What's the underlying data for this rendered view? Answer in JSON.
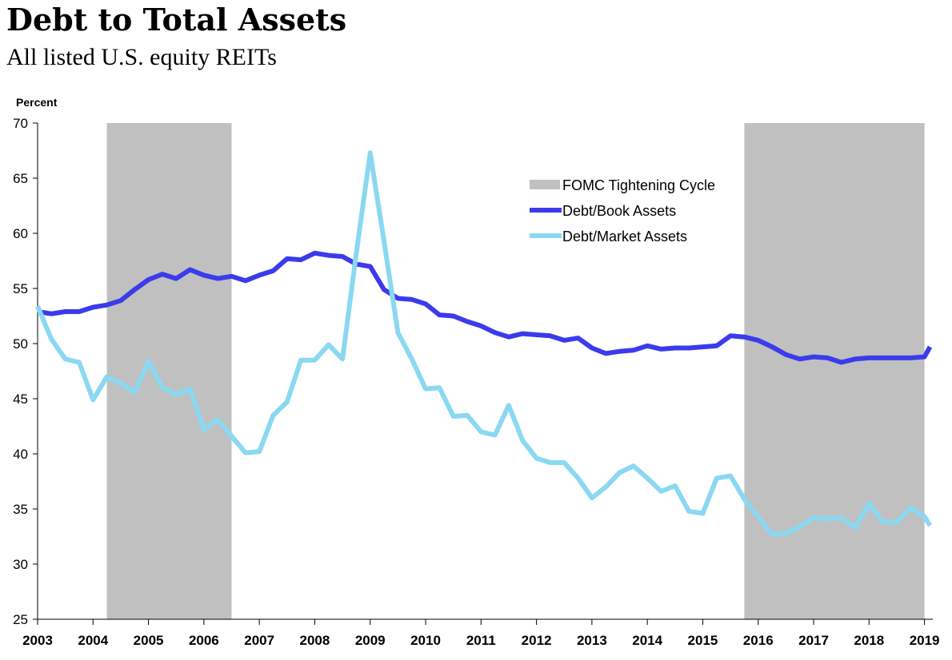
{
  "chart_data": {
    "type": "line",
    "title": "Debt to Total Assets",
    "subtitle": "All listed U.S. equity REITs",
    "ylabel": "Percent",
    "xlabel": "",
    "ylim": [
      25,
      70
    ],
    "yticks": [
      25,
      30,
      35,
      40,
      45,
      50,
      55,
      60,
      65,
      70
    ],
    "xlim": [
      2003.0,
      2019.15
    ],
    "xticks": [
      "2003",
      "2004",
      "2005",
      "2006",
      "2007",
      "2008",
      "2009",
      "2010",
      "2011",
      "2012",
      "2013",
      "2014",
      "2015",
      "2016",
      "2017",
      "2018",
      "2019"
    ],
    "grid": false,
    "legend_position": "upper-right-center",
    "shaded_periods": [
      {
        "name": "FOMC Tightening Cycle",
        "start": 2004.25,
        "end": 2006.5,
        "color": "#c0c0c0"
      },
      {
        "name": "FOMC Tightening Cycle",
        "start": 2015.75,
        "end": 2019.0,
        "color": "#c0c0c0"
      }
    ],
    "legend": [
      {
        "label": "FOMC Tightening Cycle",
        "kind": "band",
        "color": "#c0c0c0"
      },
      {
        "label": "Debt/Book Assets",
        "kind": "line",
        "color": "#3b3bec"
      },
      {
        "label": "Debt/Market Assets",
        "kind": "line",
        "color": "#8ad8f2"
      }
    ],
    "series": [
      {
        "name": "Debt/Book Assets",
        "color": "#3b3bec",
        "x": [
          2003.0,
          2003.25,
          2003.5,
          2003.75,
          2004.0,
          2004.25,
          2004.5,
          2004.75,
          2005.0,
          2005.25,
          2005.5,
          2005.75,
          2006.0,
          2006.25,
          2006.5,
          2006.75,
          2007.0,
          2007.25,
          2007.5,
          2007.75,
          2008.0,
          2008.25,
          2008.5,
          2008.75,
          2009.0,
          2009.25,
          2009.5,
          2009.75,
          2010.0,
          2010.25,
          2010.5,
          2010.75,
          2011.0,
          2011.25,
          2011.5,
          2011.75,
          2012.0,
          2012.25,
          2012.5,
          2012.75,
          2013.0,
          2013.25,
          2013.5,
          2013.75,
          2014.0,
          2014.25,
          2014.5,
          2014.75,
          2015.0,
          2015.25,
          2015.5,
          2015.75,
          2016.0,
          2016.25,
          2016.5,
          2016.75,
          2017.0,
          2017.25,
          2017.5,
          2017.75,
          2018.0,
          2018.25,
          2018.5,
          2018.75,
          2019.0,
          2019.1
        ],
        "values": [
          52.9,
          52.7,
          52.9,
          52.9,
          53.3,
          53.5,
          53.9,
          54.9,
          55.8,
          56.3,
          55.9,
          56.7,
          56.2,
          55.9,
          56.1,
          55.7,
          56.2,
          56.6,
          57.7,
          57.6,
          58.2,
          58.0,
          57.9,
          57.2,
          57.0,
          54.9,
          54.1,
          54.0,
          53.6,
          52.6,
          52.5,
          52.0,
          51.6,
          51.0,
          50.6,
          50.9,
          50.8,
          50.7,
          50.3,
          50.5,
          49.6,
          49.1,
          49.3,
          49.4,
          49.8,
          49.5,
          49.6,
          49.6,
          49.7,
          49.8,
          50.7,
          50.6,
          50.3,
          49.7,
          49.0,
          48.6,
          48.8,
          48.7,
          48.3,
          48.6,
          48.7,
          48.7,
          48.7,
          48.7,
          48.8,
          49.7
        ]
      },
      {
        "name": "Debt/Market Assets",
        "color": "#8ad8f2",
        "x": [
          2003.0,
          2003.25,
          2003.5,
          2003.75,
          2004.0,
          2004.25,
          2004.5,
          2004.75,
          2005.0,
          2005.25,
          2005.5,
          2005.75,
          2006.0,
          2006.25,
          2006.5,
          2006.75,
          2007.0,
          2007.25,
          2007.5,
          2007.75,
          2008.0,
          2008.25,
          2008.5,
          2008.75,
          2009.0,
          2009.25,
          2009.5,
          2009.75,
          2010.0,
          2010.25,
          2010.5,
          2010.75,
          2011.0,
          2011.25,
          2011.5,
          2011.75,
          2012.0,
          2012.25,
          2012.5,
          2012.75,
          2013.0,
          2013.25,
          2013.5,
          2013.75,
          2014.0,
          2014.25,
          2014.5,
          2014.75,
          2015.0,
          2015.25,
          2015.5,
          2015.75,
          2016.0,
          2016.25,
          2016.5,
          2016.75,
          2017.0,
          2017.25,
          2017.5,
          2017.75,
          2018.0,
          2018.25,
          2018.5,
          2018.75,
          2019.0,
          2019.1
        ],
        "values": [
          53.4,
          50.4,
          48.6,
          48.3,
          44.9,
          47.0,
          46.4,
          45.6,
          48.4,
          46.0,
          45.4,
          45.9,
          42.2,
          43.1,
          41.6,
          40.1,
          40.2,
          43.5,
          44.7,
          48.5,
          48.5,
          49.9,
          48.6,
          58.2,
          67.3,
          59.3,
          51.0,
          48.6,
          45.9,
          46.0,
          43.4,
          43.5,
          42.0,
          41.7,
          44.4,
          41.2,
          39.6,
          39.2,
          39.2,
          37.8,
          36.0,
          37.0,
          38.3,
          38.9,
          37.8,
          36.6,
          37.1,
          34.8,
          34.6,
          37.8,
          38.0,
          35.9,
          34.3,
          32.7,
          32.8,
          33.4,
          34.2,
          34.1,
          34.2,
          33.3,
          35.5,
          33.8,
          33.8,
          35.1,
          34.3,
          33.5
        ]
      }
    ]
  }
}
